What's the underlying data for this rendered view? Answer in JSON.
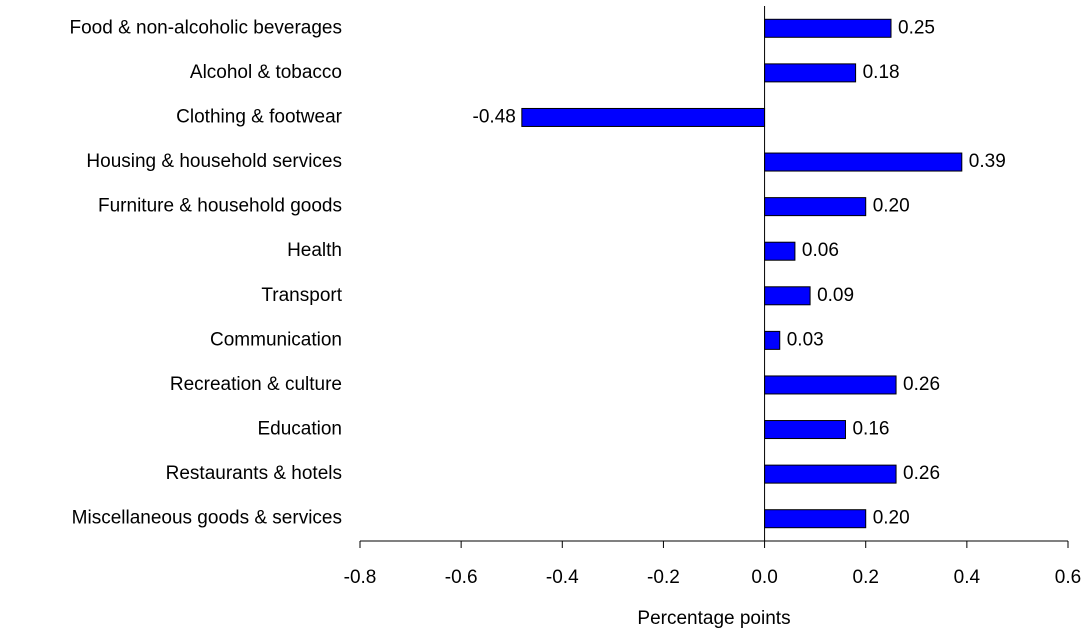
{
  "chart_data": {
    "type": "hbar",
    "categories": [
      "Food & non-alcoholic beverages",
      "Alcohol & tobacco",
      "Clothing & footwear",
      "Housing & household services",
      "Furniture & household goods",
      "Health",
      "Transport",
      "Communication",
      "Recreation & culture",
      "Education",
      "Restaurants & hotels",
      "Miscellaneous goods & services"
    ],
    "values": [
      0.25,
      0.18,
      -0.48,
      0.39,
      0.2,
      0.06,
      0.09,
      0.03,
      0.26,
      0.16,
      0.26,
      0.2
    ],
    "value_labels": [
      "0.25",
      "0.18",
      "-0.48",
      "0.39",
      "0.20",
      "0.06",
      "0.09",
      "0.03",
      "0.26",
      "0.16",
      "0.26",
      "0.20"
    ],
    "color": "#0000ff",
    "xlabel": "Percentage points",
    "xlim": [
      -0.8,
      0.6
    ],
    "xticks": [
      -0.8,
      -0.6,
      -0.4,
      -0.2,
      {
        "value": 0,
        "label": "0.0"
      },
      0.2,
      0.4,
      0.6
    ]
  }
}
